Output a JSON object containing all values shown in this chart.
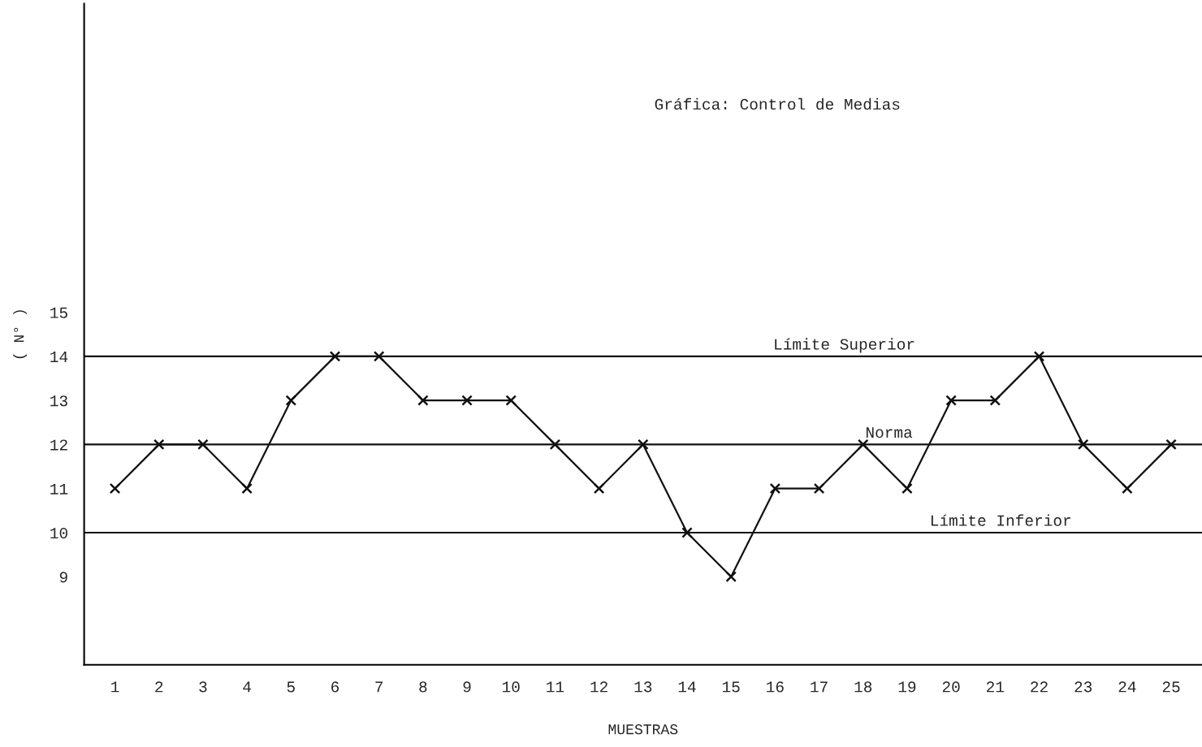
{
  "chart_data": {
    "type": "line",
    "annotations": [
      "Gráfica: Control de Medias"
    ],
    "xlabel": "MUESTRAS",
    "ylabel": "( N° )",
    "categories": [
      "1",
      "2",
      "3",
      "4",
      "5",
      "6",
      "7",
      "8",
      "9",
      "10",
      "11",
      "12",
      "13",
      "14",
      "15",
      "16",
      "17",
      "18",
      "19",
      "20",
      "21",
      "22",
      "23",
      "24",
      "25"
    ],
    "series": [
      {
        "color": "#111111",
        "values": [
          11,
          12,
          12,
          11,
          13,
          14,
          14,
          13,
          13,
          13,
          12,
          11,
          12,
          10,
          9,
          11,
          11,
          12,
          11,
          13,
          13,
          14,
          12,
          11,
          12
        ]
      }
    ],
    "ylim": [
      7,
      22
    ],
    "yticks": [
      9,
      10,
      11,
      12,
      13,
      14,
      15
    ],
    "ref_lines": [
      {
        "axis": "y",
        "value": 14,
        "label": "Límite Superior",
        "color": "#111111"
      },
      {
        "axis": "y",
        "value": 12,
        "label": "Norma",
        "color": "#111111"
      },
      {
        "axis": "y",
        "value": 10,
        "label": "Límite Inferior",
        "color": "#111111"
      }
    ],
    "marker": "cross",
    "line_style": "solid",
    "grid": false,
    "legend": false
  }
}
